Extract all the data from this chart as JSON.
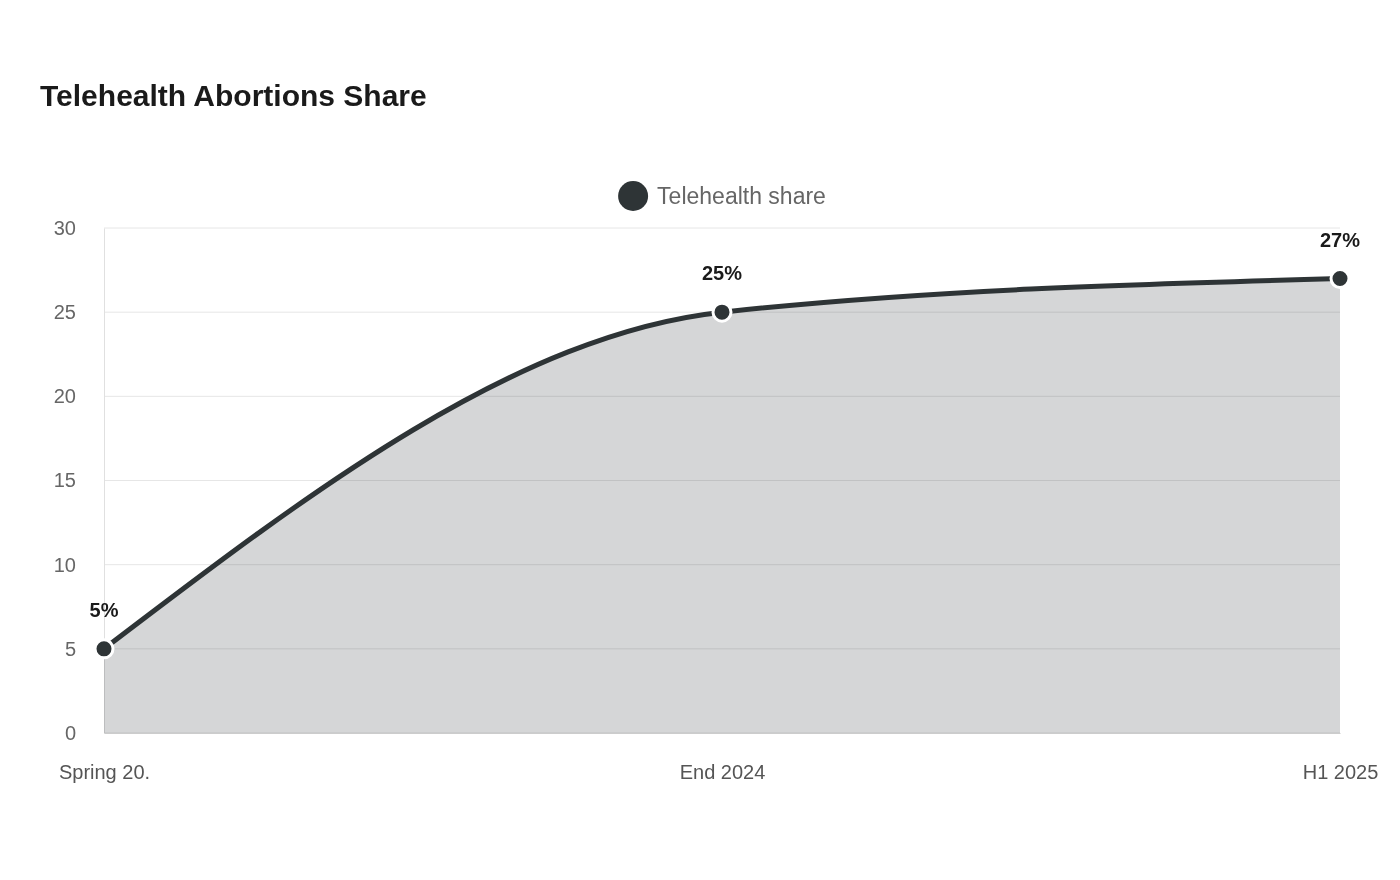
{
  "chart_data": {
    "type": "area",
    "title": "Telehealth Abortions Share",
    "categories": [
      "Spring 20.",
      "End 2024",
      "H1 2025"
    ],
    "series": [
      {
        "name": "Telehealth share",
        "color": "#2e3436",
        "values": [
          5,
          25,
          27
        ],
        "value_labels": [
          "5%",
          "25%",
          "27%"
        ]
      }
    ],
    "ylim": [
      0,
      30
    ],
    "yticks": [
      0,
      5,
      10,
      15,
      20,
      25,
      30
    ],
    "grid": "y",
    "legend": "top",
    "marker": "circle"
  }
}
